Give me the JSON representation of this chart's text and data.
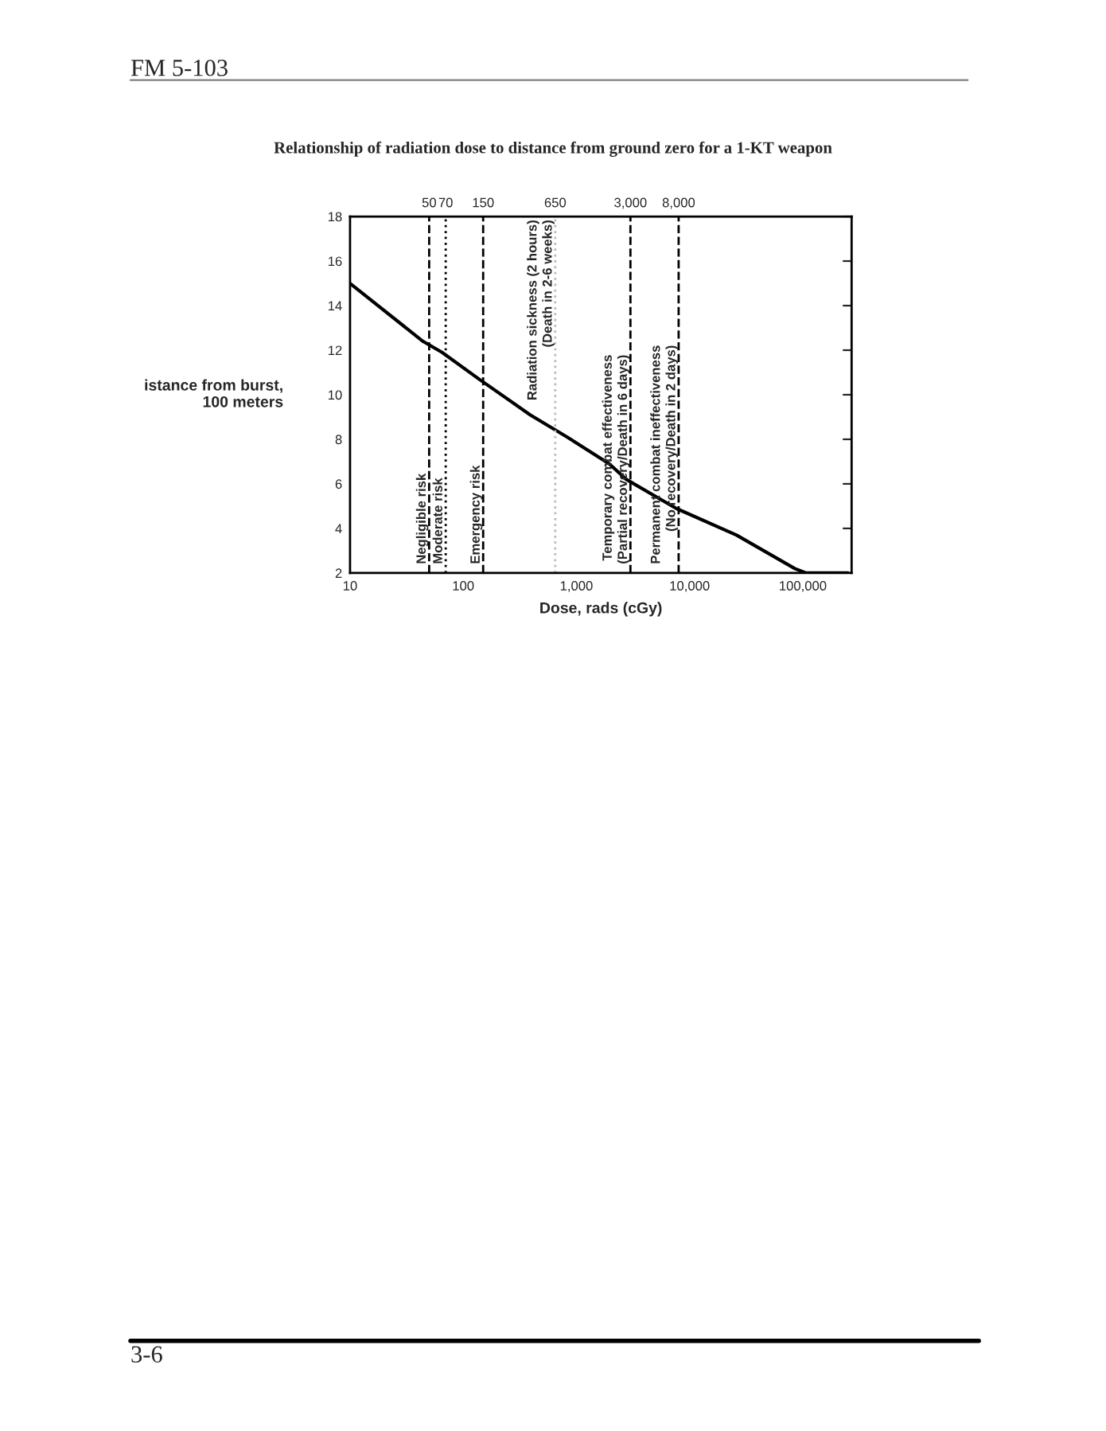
{
  "chart_data": {
    "type": "line",
    "title": "Relationship of radiation dose to distance from ground zero for a 1-KT weapon",
    "xlabel": "Dose, rads (cGy)",
    "ylabel": "istance from burst,\n100 meters",
    "log": "x",
    "grid": false,
    "marker": "none",
    "line_style": "solid",
    "x": [
      10,
      44,
      65,
      138,
      390,
      830,
      1950,
      2760,
      7600,
      26000,
      85000,
      107000,
      250000
    ],
    "series": [
      {
        "color": "#000000",
        "values": [
          15,
          12.4,
          11.9,
          10.7,
          9.1,
          8.1,
          6.9,
          6.2,
          4.9,
          3.7,
          2.2,
          2,
          2
        ]
      }
    ],
    "xlim": [
      10,
      270000
    ],
    "xticks": [
      10,
      100,
      {
        "value": 1000,
        "label": "1,000"
      },
      {
        "value": 10000,
        "label": "10,000"
      },
      {
        "value": 100000,
        "label": "100,000"
      }
    ],
    "ylim": [
      2,
      18
    ],
    "yticks": [
      2,
      4,
      6,
      8,
      10,
      12,
      14,
      16,
      18
    ],
    "ref_lines": [
      {
        "axis": "x",
        "value": 50,
        "label": "50",
        "line_style": "dashed",
        "color": "#000000"
      },
      {
        "axis": "x",
        "value": 70,
        "label": "70",
        "line_style": "dotted",
        "color": "#000000"
      },
      {
        "axis": "x",
        "value": 150,
        "label": "150",
        "line_style": "dashed",
        "color": "#000000"
      },
      {
        "axis": "x",
        "value": 650,
        "label": "650",
        "line_style": "dotted",
        "color": "#bbbbbb"
      },
      {
        "axis": "x",
        "value": 3000,
        "label": "3,000",
        "line_style": "dashed",
        "color": "#000000"
      },
      {
        "axis": "x",
        "value": 8000,
        "label": "8,000",
        "line_style": "dashed",
        "color": "#000000"
      }
    ],
    "annotations": [
      {
        "text": "Negligible risk",
        "x": 50,
        "y": 2
      },
      {
        "text": "Moderate risk",
        "x": 70,
        "y": 2
      },
      {
        "text": "Emergency risk",
        "x": 150,
        "y": 2
      },
      {
        "text": "Radiation sickness (2 hours)\n(Death in 2-6 weeks)",
        "x": 650,
        "y": 18
      },
      {
        "text": "Temporary combat effectiveness\n(Partial recovery/Death in 6 days)",
        "x": 3000,
        "y": 2
      },
      {
        "text": "Permanent combat ineffectiveness\n(No recovery/Death in 2 days)",
        "x": 8000,
        "y": 2
      },
      "FM 5-103",
      "3-6"
    ]
  }
}
